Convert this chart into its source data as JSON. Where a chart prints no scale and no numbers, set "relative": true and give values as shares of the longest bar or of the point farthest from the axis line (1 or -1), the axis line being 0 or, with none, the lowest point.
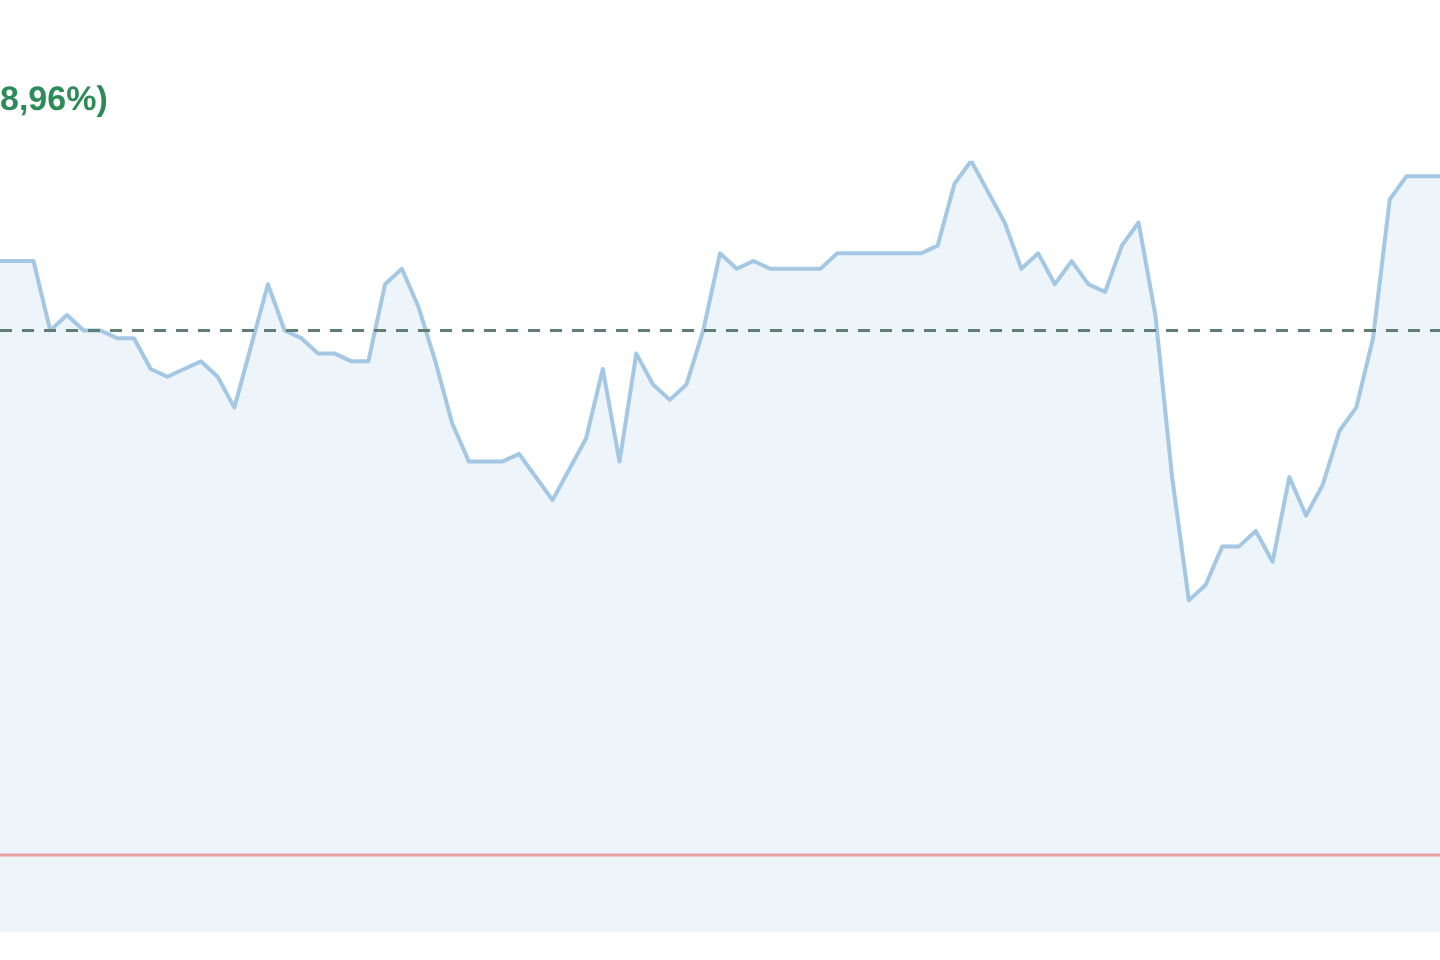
{
  "chart_data": {
    "type": "area",
    "title": "8,96%)",
    "relative": true,
    "categories": [
      null,
      null,
      null,
      null,
      null,
      null,
      null,
      null,
      null,
      null,
      null,
      null,
      null,
      null,
      null,
      null,
      null,
      null,
      null,
      null,
      null,
      null,
      null,
      null,
      null,
      null,
      null,
      null,
      null,
      null,
      null,
      null,
      null,
      null,
      null,
      null,
      null,
      null,
      null,
      null,
      null,
      null,
      null,
      null,
      null,
      null,
      null,
      null,
      null,
      null,
      null,
      null,
      null,
      null,
      null,
      null,
      null,
      null,
      null,
      null,
      null,
      null,
      null,
      null,
      null,
      null,
      null,
      null,
      null,
      null,
      null,
      null,
      null,
      null,
      null,
      null,
      null,
      null,
      null,
      null,
      null,
      null,
      null,
      null,
      null,
      null,
      null
    ],
    "series": [
      {
        "color": "#a4c8e4",
        "values": [
          0.87,
          0.87,
          0.87,
          0.78,
          0.8,
          0.78,
          0.78,
          0.77,
          0.77,
          0.73,
          0.72,
          0.73,
          0.74,
          0.72,
          0.68,
          0.76,
          0.84,
          0.78,
          0.77,
          0.75,
          0.75,
          0.74,
          0.74,
          0.84,
          0.86,
          0.81,
          0.74,
          0.66,
          0.61,
          0.61,
          0.61,
          0.62,
          0.59,
          0.56,
          0.6,
          0.64,
          0.73,
          0.61,
          0.75,
          0.71,
          0.69,
          0.71,
          0.78,
          0.88,
          0.86,
          0.87,
          0.86,
          0.86,
          0.86,
          0.86,
          0.88,
          0.88,
          0.88,
          0.88,
          0.88,
          0.88,
          0.89,
          0.97,
          1,
          0.96,
          0.92,
          0.86,
          0.88,
          0.84,
          0.87,
          0.84,
          0.83,
          0.89,
          0.92,
          0.8,
          0.59,
          0.43,
          0.45,
          0.5,
          0.5,
          0.52,
          0.48,
          0.59,
          0.54,
          0.58,
          0.65,
          0.68,
          0.77,
          0.95,
          0.98,
          0.98,
          0.98
        ]
      }
    ],
    "ref_lines": [
      {
        "axis": "y",
        "value": 0.78,
        "color": "#5f7f75",
        "line_style": "dashed"
      },
      {
        "axis": "y",
        "value": 0.1,
        "color": "#e8a0a0",
        "line_style": "solid"
      }
    ],
    "legend": false
  }
}
